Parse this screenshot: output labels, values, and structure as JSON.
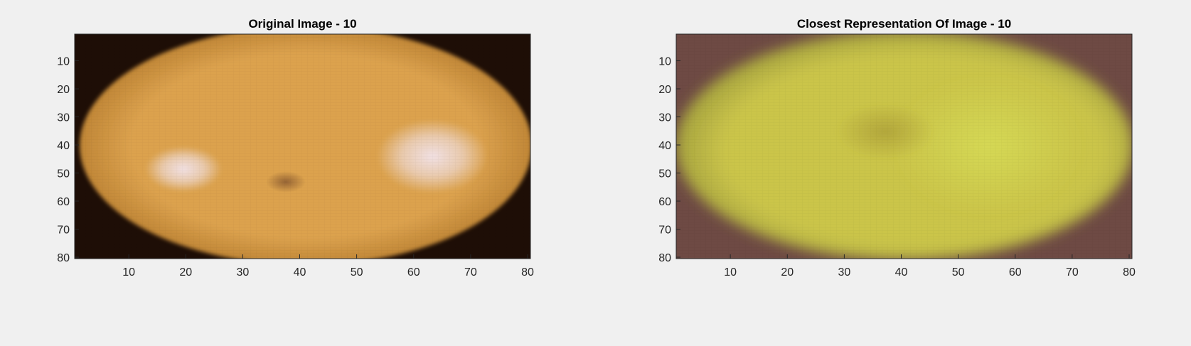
{
  "figure": {
    "background": "#f0f0f0"
  },
  "chart_data": [
    {
      "type": "image",
      "title": "Original Image - 10",
      "image_size": [
        80,
        80
      ],
      "xlim": [
        0.5,
        80.5
      ],
      "ylim": [
        0.5,
        80.5
      ],
      "y_reversed": true,
      "xticks": [
        10,
        20,
        30,
        40,
        50,
        60,
        70,
        80
      ],
      "yticks": [
        10,
        20,
        30,
        40,
        50,
        60,
        70,
        80
      ],
      "xlabel": "",
      "ylabel": "",
      "content": "orange-yellow mango with dark corners and white glare highlights",
      "palette": {
        "fruit": "#dca24e",
        "fruit_edge": "#b47a2c",
        "background": "#1e0e06",
        "highlight": "#f2e4ec",
        "spot": "#8a5a30"
      }
    },
    {
      "type": "image",
      "title": "Closest Representation Of Image - 10",
      "image_size": [
        80,
        80
      ],
      "xlim": [
        0.5,
        80.5
      ],
      "ylim": [
        0.5,
        80.5
      ],
      "y_reversed": true,
      "xticks": [
        10,
        20,
        30,
        40,
        50,
        60,
        70,
        80
      ],
      "yticks": [
        10,
        20,
        30,
        40,
        50,
        60,
        70,
        80
      ],
      "xlabel": "",
      "ylabel": "",
      "content": "blurry yellow-green reconstruction of the fruit on a brown background",
      "palette": {
        "fruit": "#cbc54a",
        "fruit_edge": "#9c9a3c",
        "background": "#6e4a44",
        "highlight": "#d8de58",
        "spot": "#a89a36"
      }
    }
  ]
}
